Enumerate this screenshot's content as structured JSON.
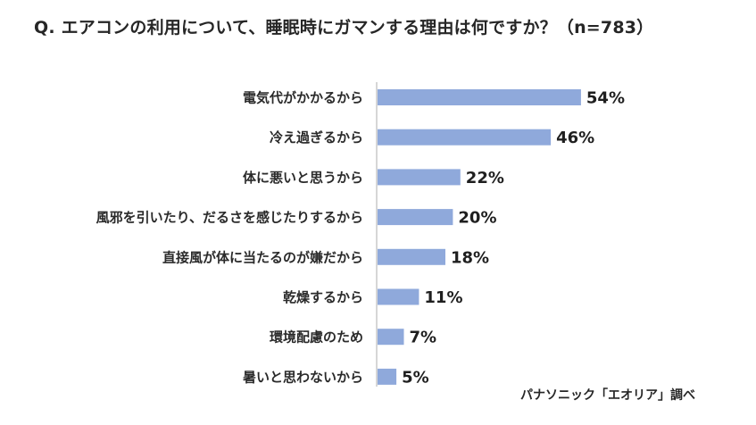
{
  "title": "Q. エアコンの利用について、睡眠時にガマンする理由は何ですか？（n=783）",
  "source": "パナソニック「エオリア」調べ",
  "colors": {
    "bar": "#8fa9db",
    "axis": "#c8c8c8"
  },
  "chart_data": {
    "type": "bar",
    "orientation": "horizontal",
    "title": "Q. エアコンの利用について、睡眠時にガマンする理由は何ですか？（n=783）",
    "categories": [
      "電気代がかかるから",
      "冷え過ぎるから",
      "体に悪いと思うから",
      "風邪を引いたり、だるさを感じたりするから",
      "直接風が体に当たるのが嫌だから",
      "乾燥するから",
      "環境配慮のため",
      "暑いと思わないから"
    ],
    "values": [
      54,
      46,
      22,
      20,
      18,
      11,
      7,
      5
    ],
    "value_labels": [
      "54%",
      "46%",
      "22%",
      "20%",
      "18%",
      "11%",
      "7%",
      "5%"
    ],
    "unit": "%",
    "xlim": [
      0,
      100
    ],
    "grid": false,
    "legend": "none"
  }
}
